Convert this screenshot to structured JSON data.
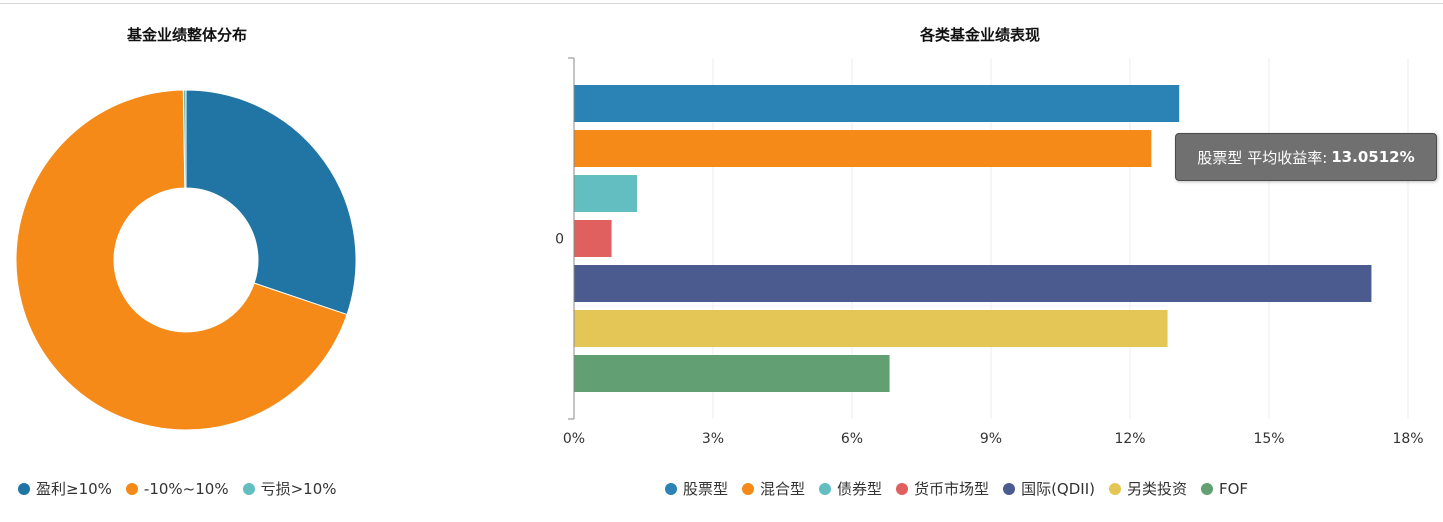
{
  "colors": {
    "blue": "#2a82b5",
    "orange": "#f58a18",
    "teal": "#62bec1",
    "red": "#e06060",
    "navy": "#4b5a8f",
    "yellow": "#e3c655",
    "green": "#62a073",
    "grid": "#eeeeee",
    "axis": "#888888"
  },
  "chart_data": [
    {
      "type": "pie",
      "title": "基金业绩整体分布",
      "donut": true,
      "slices": [
        {
          "name": "盈利≥10%",
          "value": 30.2,
          "color": "#2175a5"
        },
        {
          "name": "-10%~10%",
          "value": 69.55,
          "color": "#f58a18"
        },
        {
          "name": "亏损>10%",
          "value": 0.25,
          "color": "#62bec1"
        }
      ],
      "legend_position": "bottom-left"
    },
    {
      "type": "bar",
      "orientation": "horizontal",
      "title": "各类基金业绩表现",
      "categories": [
        "0"
      ],
      "series": [
        {
          "name": "股票型",
          "values": [
            13.0512
          ],
          "color": "#2a82b5"
        },
        {
          "name": "混合型",
          "values": [
            12.45
          ],
          "color": "#f58a18"
        },
        {
          "name": "债券型",
          "values": [
            1.35
          ],
          "color": "#62bec1"
        },
        {
          "name": "货币市场型",
          "values": [
            0.8
          ],
          "color": "#e06060"
        },
        {
          "name": "国际(QDII)",
          "values": [
            17.2
          ],
          "color": "#4b5a8f"
        },
        {
          "name": "另类投资",
          "values": [
            12.8
          ],
          "color": "#e3c655"
        },
        {
          "name": "FOF",
          "values": [
            6.8
          ],
          "color": "#62a073"
        }
      ],
      "xlim": [
        0,
        18
      ],
      "x_ticks": [
        0,
        3,
        6,
        9,
        12,
        15,
        18
      ],
      "x_tick_labels": [
        "0%",
        "3%",
        "6%",
        "9%",
        "12%",
        "15%",
        "18%"
      ],
      "grid": true,
      "legend_position": "bottom",
      "tooltip": {
        "series_name": "股票型",
        "label": "平均收益率:",
        "value": "13.0512%"
      }
    }
  ]
}
